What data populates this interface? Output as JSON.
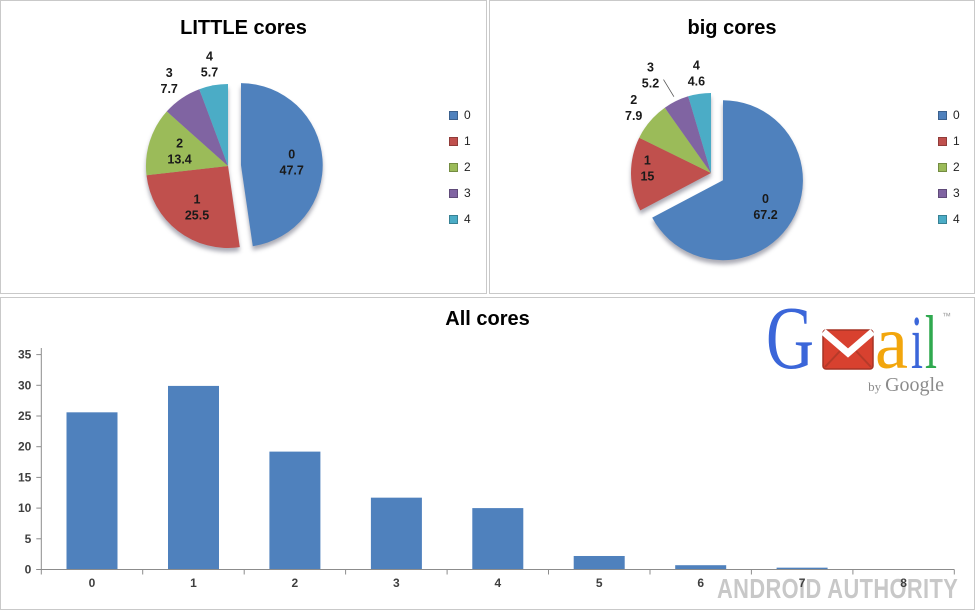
{
  "chart_data": [
    {
      "type": "pie",
      "panel": "top-left",
      "title": "LITTLE cores",
      "labels": [
        "0",
        "1",
        "2",
        "3",
        "4"
      ],
      "values": [
        47.7,
        25.5,
        13.4,
        7.7,
        5.7
      ],
      "value_labels": [
        "47.7",
        "25.5",
        "13.4",
        "7.7",
        "5.7"
      ],
      "colors": [
        "#4F81BD",
        "#C0504D",
        "#9BBB59",
        "#8064A2",
        "#4BACC6"
      ],
      "exploded_slice": 0,
      "legend_position": "right",
      "legend_labels": [
        "0",
        "1",
        "2",
        "3",
        "4"
      ]
    },
    {
      "type": "pie",
      "panel": "top-right",
      "title": "big cores",
      "labels": [
        "0",
        "1",
        "2",
        "3",
        "4"
      ],
      "values": [
        67.2,
        15,
        7.9,
        5.2,
        4.6
      ],
      "value_labels": [
        "67.2",
        "15",
        "7.9",
        "5.2",
        "4.6"
      ],
      "colors": [
        "#4F81BD",
        "#C0504D",
        "#9BBB59",
        "#8064A2",
        "#4BACC6"
      ],
      "exploded_slice": 0,
      "legend_position": "right",
      "legend_labels": [
        "0",
        "1",
        "2",
        "3",
        "4"
      ]
    },
    {
      "type": "bar",
      "panel": "bottom",
      "title": "All cores",
      "categories": [
        "0",
        "1",
        "2",
        "3",
        "4",
        "5",
        "6",
        "7",
        "8"
      ],
      "values": [
        25.6,
        29.9,
        19.2,
        11.7,
        10.0,
        2.2,
        0.7,
        0.3,
        0.05
      ],
      "bar_color": "#4F81BD",
      "ylim": [
        0,
        35
      ],
      "ytick_step": 5,
      "ytick_labels": [
        "0",
        "5",
        "10",
        "15",
        "20",
        "25",
        "30",
        "35"
      ],
      "grid": false,
      "legend": "none"
    }
  ],
  "branding": {
    "gmail": {
      "letter_g": "G",
      "letter_a": "a",
      "letter_i": "i",
      "letter_l": "l",
      "trademark": "™",
      "byline_by": "by",
      "byline_google": "Google",
      "color_blue": "#3B66D9",
      "color_envelope_red": "#D8412F",
      "color_orange": "#F2A60D",
      "color_green": "#2FA94F",
      "color_gray": "#8B8B8B"
    },
    "watermark": "ANDROID AUTHORITY"
  },
  "style_colors": {
    "axis": "#8c8c8c",
    "panel_border": "#c9c9c9",
    "text": "#3f3f3f"
  }
}
